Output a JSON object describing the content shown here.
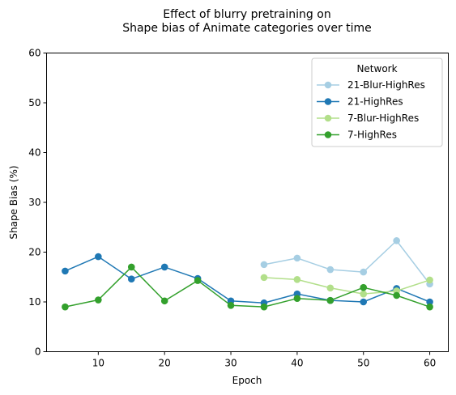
{
  "chart_data": {
    "type": "line",
    "title_line1": "Effect of blurry pretraining on",
    "title_line2": "Shape bias of Animate categories over time",
    "xlabel": "Epoch",
    "ylabel": "Shape Bias (%)",
    "xlim": [
      2.2,
      62.8
    ],
    "ylim": [
      0,
      60
    ],
    "xticks": [
      10,
      20,
      30,
      40,
      50,
      60
    ],
    "yticks": [
      0,
      10,
      20,
      30,
      40,
      50,
      60
    ],
    "grid": false,
    "legend": {
      "title": "Network",
      "placement": "top-right"
    },
    "series": [
      {
        "name": "21-Blur-HighRes",
        "color": "#a6cee3",
        "x": [
          35,
          40,
          45,
          50,
          55,
          60
        ],
        "y": [
          17.5,
          18.8,
          16.5,
          16.0,
          22.3,
          13.6
        ]
      },
      {
        "name": "21-HighRes",
        "color": "#1f78b4",
        "x": [
          5,
          10,
          15,
          20,
          25,
          30,
          35,
          40,
          45,
          50,
          55,
          60
        ],
        "y": [
          16.2,
          19.1,
          14.6,
          17.0,
          14.7,
          10.2,
          9.8,
          11.6,
          10.3,
          10.0,
          12.7,
          10.0
        ]
      },
      {
        "name": "7-Blur-HighRes",
        "color": "#b2df8a",
        "x": [
          35,
          40,
          45,
          50,
          55,
          60
        ],
        "y": [
          14.9,
          14.5,
          12.8,
          11.6,
          12.2,
          14.4
        ]
      },
      {
        "name": "7-HighRes",
        "color": "#33a02c",
        "x": [
          5,
          10,
          15,
          20,
          25,
          30,
          35,
          40,
          45,
          50,
          55,
          60
        ],
        "y": [
          9.0,
          10.4,
          17.0,
          10.2,
          14.3,
          9.3,
          9.0,
          10.7,
          10.3,
          12.9,
          11.3,
          9.0
        ]
      }
    ]
  }
}
